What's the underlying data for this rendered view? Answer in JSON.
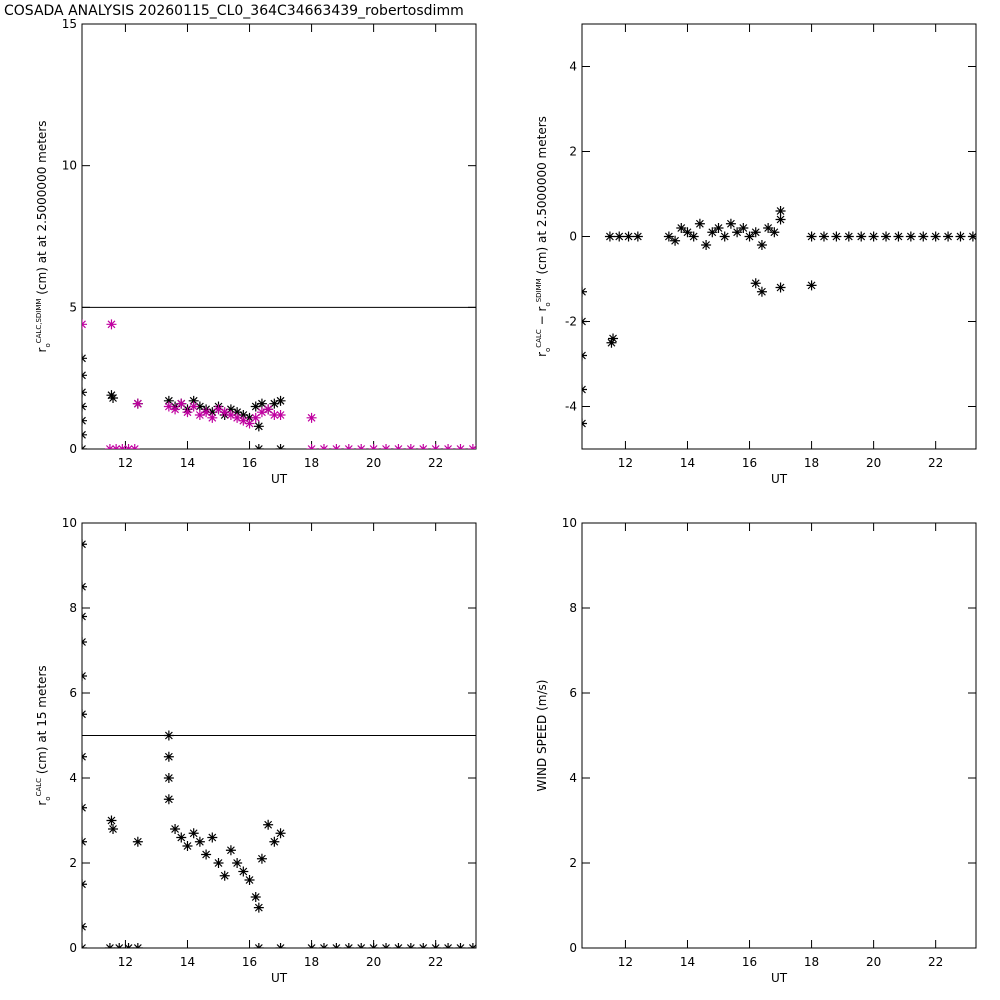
{
  "title": "COSADA ANALYSIS 20260115_CL0_364C34663439_robertosdimm",
  "chart_data": [
    {
      "type": "scatter",
      "xlabel": "UT",
      "ylabel": [
        {
          "text": "r",
          "script": "normal"
        },
        {
          "text": "o",
          "script": "sub"
        },
        {
          "text": "CALC,SDIMM",
          "script": "sup"
        },
        {
          "text": " (cm) at  at 2.5000000 meters",
          "script": "normal"
        }
      ],
      "xlim": [
        10.6,
        23.3
      ],
      "xticks": [
        12,
        14,
        16,
        18,
        20,
        22
      ],
      "ylim": [
        0,
        15
      ],
      "yticks": [
        0,
        5,
        10,
        15
      ],
      "hline": 5,
      "series": [
        {
          "color": "#000000",
          "x": [
            10.6,
            10.6,
            10.6,
            10.6,
            10.6,
            10.6,
            10.6,
            11.55,
            11.6,
            12.4,
            13.4,
            13.6,
            13.8,
            14.0,
            14.2,
            14.4,
            14.6,
            14.8,
            15.0,
            15.2,
            15.4,
            15.6,
            15.8,
            16.0,
            16.2,
            16.4,
            16.6,
            16.8,
            17.0,
            16.3,
            17.0,
            16.3
          ],
          "values": [
            0,
            0.5,
            1.0,
            1.5,
            2.0,
            2.6,
            3.2,
            1.9,
            1.8,
            1.6,
            1.7,
            1.5,
            1.6,
            1.4,
            1.7,
            1.5,
            1.4,
            1.3,
            1.5,
            1.2,
            1.4,
            1.3,
            1.2,
            1.1,
            1.5,
            1.6,
            1.4,
            1.6,
            1.7,
            0.8,
            0,
            0
          ]
        },
        {
          "color": "#c000a0",
          "x": [
            10.6,
            11.55,
            12.4,
            13.4,
            13.6,
            13.8,
            14.0,
            14.2,
            14.4,
            14.6,
            14.8,
            15.0,
            15.2,
            15.4,
            15.6,
            15.8,
            16.0,
            16.2,
            16.4,
            16.6,
            16.8,
            17.0,
            18.0,
            11.5,
            11.7,
            11.9,
            12.1,
            12.3,
            18.0,
            18.4,
            18.8,
            19.2,
            19.6,
            20.0,
            20.4,
            20.8,
            21.2,
            21.6,
            22.0,
            22.4,
            22.8,
            23.2
          ],
          "values": [
            4.4,
            4.4,
            1.6,
            1.5,
            1.4,
            1.6,
            1.3,
            1.5,
            1.2,
            1.3,
            1.1,
            1.4,
            1.3,
            1.2,
            1.1,
            1.0,
            0.9,
            1.1,
            1.3,
            1.4,
            1.2,
            1.2,
            1.1,
            0,
            0,
            0,
            0,
            0,
            0,
            0,
            0,
            0,
            0,
            0,
            0,
            0,
            0,
            0,
            0,
            0,
            0,
            0
          ]
        }
      ]
    },
    {
      "type": "scatter",
      "xlabel": "UT",
      "ylabel": [
        {
          "text": "r",
          "script": "normal"
        },
        {
          "text": "o",
          "script": "sub"
        },
        {
          "text": "CALC",
          "script": "sup"
        },
        {
          "text": "  − r",
          "script": "normal"
        },
        {
          "text": "o",
          "script": "sub"
        },
        {
          "text": "SDIMM",
          "script": "sup"
        },
        {
          "text": " (cm) at 2.5000000 meters",
          "script": "normal"
        }
      ],
      "xlim": [
        10.6,
        23.3
      ],
      "xticks": [
        12,
        14,
        16,
        18,
        20,
        22
      ],
      "ylim": [
        -5,
        5
      ],
      "yticks": [
        -4,
        -2,
        0,
        2,
        4
      ],
      "series": [
        {
          "color": "#000000",
          "x": [
            10.6,
            10.6,
            10.6,
            10.6,
            10.6,
            11.55,
            11.6,
            11.5,
            11.8,
            12.1,
            12.4,
            13.4,
            13.6,
            13.8,
            14.0,
            14.2,
            14.4,
            14.6,
            14.8,
            15.0,
            15.2,
            15.4,
            15.6,
            15.8,
            16.0,
            16.2,
            16.4,
            16.6,
            16.8,
            17.0,
            16.2,
            16.4,
            17.0,
            18.0,
            17.0,
            18.0,
            18.4,
            18.8,
            19.2,
            19.6,
            20.0,
            20.4,
            20.8,
            21.2,
            21.6,
            22.0,
            22.4,
            22.8,
            23.2
          ],
          "values": [
            -4.4,
            -3.6,
            -2.8,
            -2.0,
            -1.3,
            -2.5,
            -2.4,
            0,
            0,
            0,
            0,
            0,
            -0.1,
            0.2,
            0.1,
            0,
            0.3,
            -0.2,
            0.1,
            0.2,
            0,
            0.3,
            0.1,
            0.2,
            0,
            0.1,
            -0.2,
            0.2,
            0.1,
            0.4,
            -1.1,
            -1.3,
            -1.2,
            -1.15,
            0.6,
            0,
            0,
            0,
            0,
            0,
            0,
            0,
            0,
            0,
            0,
            0,
            0,
            0,
            0
          ]
        }
      ]
    },
    {
      "type": "scatter",
      "xlabel": "UT",
      "ylabel": [
        {
          "text": "r",
          "script": "normal"
        },
        {
          "text": "o",
          "script": "sub"
        },
        {
          "text": "CALC",
          "script": "sup"
        },
        {
          "text": " (cm) at 15 meters",
          "script": "normal"
        }
      ],
      "xlim": [
        10.6,
        23.3
      ],
      "xticks": [
        12,
        14,
        16,
        18,
        20,
        22
      ],
      "ylim": [
        0,
        10
      ],
      "yticks": [
        0,
        2,
        4,
        6,
        8,
        10
      ],
      "hline": 5,
      "series": [
        {
          "color": "#000000",
          "x": [
            10.6,
            10.6,
            10.6,
            10.6,
            10.6,
            10.6,
            10.6,
            10.6,
            10.6,
            10.6,
            10.6,
            10.6,
            11.55,
            11.6,
            12.4,
            13.4,
            13.4,
            13.4,
            13.4,
            13.6,
            13.8,
            14.0,
            14.2,
            14.4,
            14.6,
            14.8,
            15.0,
            15.2,
            15.4,
            15.6,
            15.8,
            16.0,
            16.2,
            16.4,
            16.6,
            16.8,
            17.0,
            16.3,
            16.3,
            17.0,
            11.5,
            11.8,
            12.1,
            12.4,
            18.0,
            18.4,
            18.8,
            19.2,
            19.6,
            20.0,
            20.4,
            20.8,
            21.2,
            21.6,
            22.0,
            22.4,
            22.8,
            23.2
          ],
          "values": [
            0,
            0.5,
            1.5,
            2.5,
            3.3,
            4.5,
            5.5,
            6.4,
            7.2,
            7.8,
            8.5,
            9.5,
            3.0,
            2.8,
            2.5,
            5.0,
            4.5,
            4.0,
            3.5,
            2.8,
            2.6,
            2.4,
            2.7,
            2.5,
            2.2,
            2.6,
            2.0,
            1.7,
            2.3,
            2.0,
            1.8,
            1.6,
            1.2,
            2.1,
            2.9,
            2.5,
            2.7,
            0.95,
            0,
            0,
            0,
            0,
            0,
            0,
            0,
            0,
            0,
            0,
            0,
            0,
            0,
            0,
            0,
            0,
            0,
            0,
            0,
            0
          ]
        }
      ]
    },
    {
      "type": "scatter",
      "xlabel": "UT",
      "ylabel": [
        {
          "text": "WIND SPEED (m/s)",
          "script": "normal"
        }
      ],
      "xlim": [
        10.6,
        23.3
      ],
      "xticks": [
        12,
        14,
        16,
        18,
        20,
        22
      ],
      "ylim": [
        0,
        10
      ],
      "yticks": [
        0,
        2,
        4,
        6,
        8,
        10
      ],
      "series": []
    }
  ]
}
